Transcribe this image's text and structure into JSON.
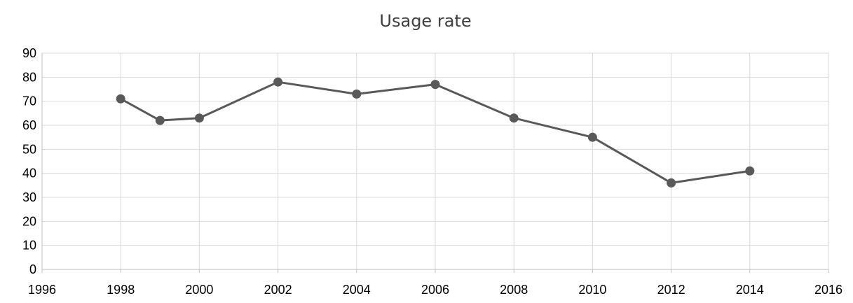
{
  "chart_data": {
    "type": "line",
    "title": "Usage rate",
    "xlabel": "",
    "ylabel": "",
    "xlim": [
      1996,
      2016
    ],
    "ylim": [
      0,
      90
    ],
    "x_ticks": [
      1996,
      1998,
      2000,
      2002,
      2004,
      2006,
      2008,
      2010,
      2012,
      2014,
      2016
    ],
    "y_ticks": [
      0,
      10,
      20,
      30,
      40,
      50,
      60,
      70,
      80,
      90
    ],
    "grid": true,
    "legend": "none",
    "series": [
      {
        "color": "#595959",
        "x": [
          1998,
          1999,
          2000,
          2002,
          2004,
          2006,
          2008,
          2010,
          2012,
          2014
        ],
        "y": [
          71,
          62,
          63,
          78,
          73,
          77,
          63,
          55,
          36,
          41
        ]
      }
    ]
  }
}
